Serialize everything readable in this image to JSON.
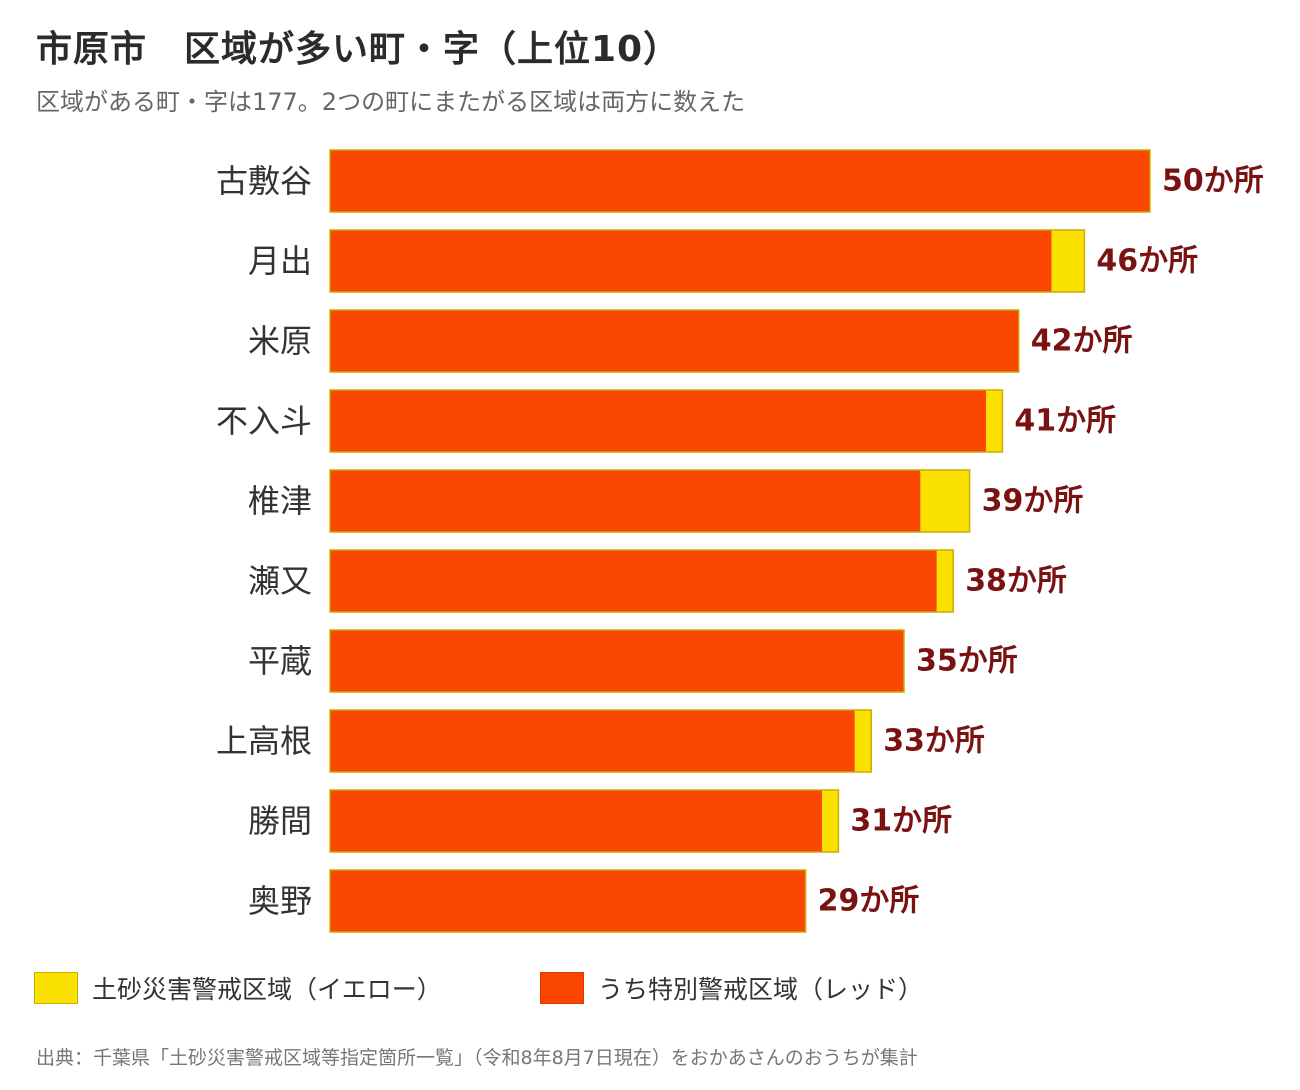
{
  "title": "市原市　区域が多い町・字（上位10）",
  "subtitle": "区域がある町・字は177。2つの町にまたがる区域は両方に数えた",
  "colors": {
    "red": "#FA4600",
    "yellow": "#FAE100",
    "yellow_border": "#C8AE00",
    "value_text": "#7A1212"
  },
  "chart_data": {
    "type": "bar",
    "orientation": "horizontal",
    "stacked": true,
    "categories": [
      "古敷谷",
      "月出",
      "米原",
      "不入斗",
      "椎津",
      "瀬又",
      "平蔵",
      "上高根",
      "勝間",
      "奥野"
    ],
    "series": [
      {
        "name": "うち特別警戒区域（レッド）",
        "values": [
          50,
          44,
          42,
          40,
          36,
          37,
          35,
          32,
          30,
          29
        ]
      },
      {
        "name": "土砂災害警戒区域（イエロー）",
        "values": [
          0,
          2,
          0,
          1,
          3,
          1,
          0,
          1,
          1,
          0
        ]
      }
    ],
    "totals": [
      50,
      46,
      42,
      41,
      39,
      38,
      35,
      33,
      31,
      29
    ],
    "value_labels": [
      "50か所",
      "46か所",
      "42か所",
      "41か所",
      "39か所",
      "38か所",
      "35か所",
      "33か所",
      "31か所",
      "29か所"
    ],
    "xlim": [
      0,
      50
    ],
    "grid": false
  },
  "legend": {
    "yellow_label": "土砂災害警戒区域（イエロー）",
    "red_label": "うち特別警戒区域（レッド）"
  },
  "source": "出典：千葉県「土砂災害警戒区域等指定箇所一覧」（令和8年8月7日現在）をおかあさんのおうちが集計"
}
